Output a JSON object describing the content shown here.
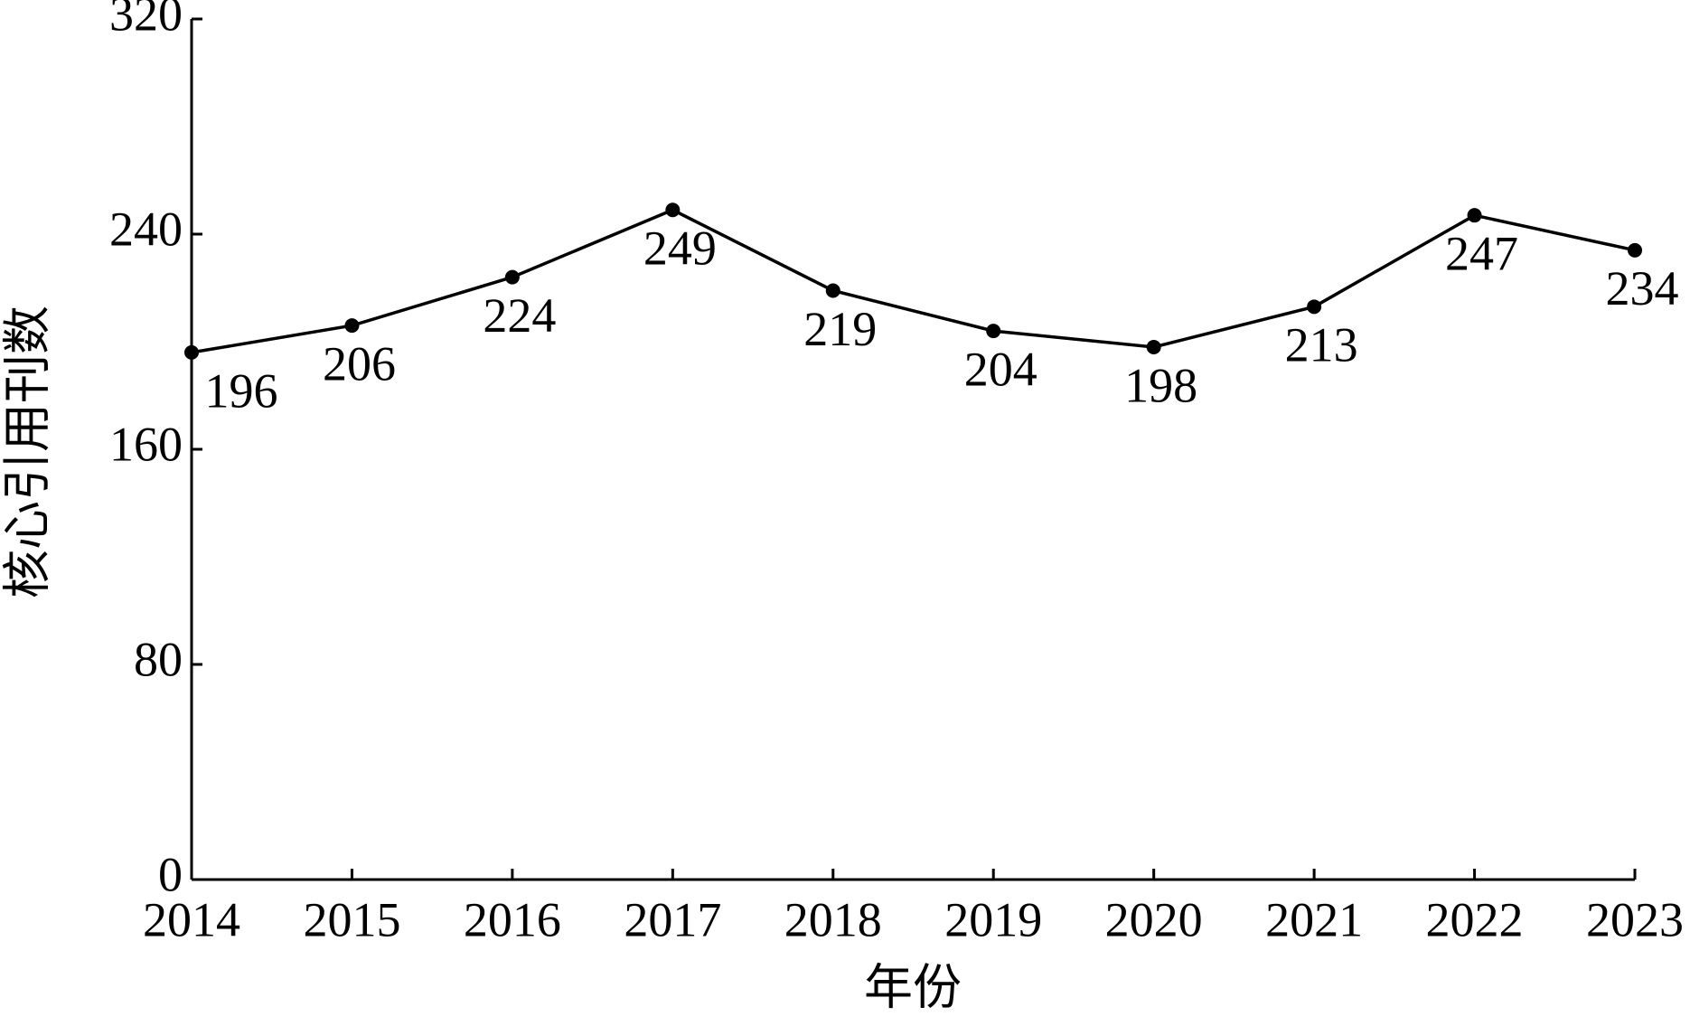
{
  "chart_data": {
    "type": "line",
    "x_label": "年份",
    "y_label": "核心引用刊数",
    "categories": [
      "2014",
      "2015",
      "2016",
      "2017",
      "2018",
      "2019",
      "2020",
      "2021",
      "2022",
      "2023"
    ],
    "values": [
      196,
      206,
      224,
      249,
      219,
      204,
      198,
      213,
      247,
      234
    ],
    "color": "#000000",
    "ylim": [
      0,
      320
    ],
    "yticks": [
      0,
      80,
      160,
      240,
      320
    ]
  }
}
